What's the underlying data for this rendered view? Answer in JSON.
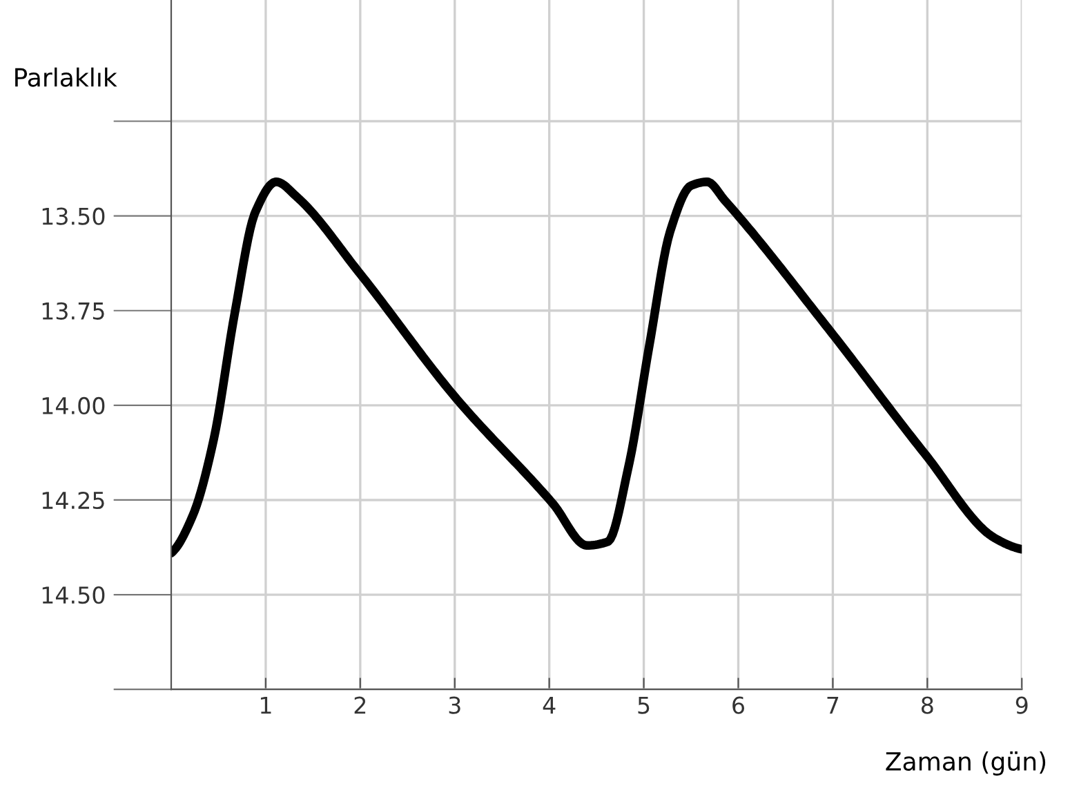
{
  "chart_data": {
    "type": "line",
    "xlabel": "Zaman (gün)",
    "ylabel": "Parlaklık",
    "xlim": [
      0,
      9
    ],
    "xticks": [
      1,
      2,
      3,
      4,
      5,
      6,
      7,
      8,
      9
    ],
    "ylim": [
      14.75,
      12.93
    ],
    "yticks": [
      {
        "value": 13.25,
        "label": null
      },
      {
        "value": 13.5,
        "label": "13.50"
      },
      {
        "value": 13.75,
        "label": "13.75"
      },
      {
        "value": 14.0,
        "label": "14.00"
      },
      {
        "value": 14.25,
        "label": "14.25"
      },
      {
        "value": 14.5,
        "label": "14.50"
      },
      {
        "value": 14.75,
        "label": null
      }
    ],
    "grid": true,
    "marker": "none",
    "line_style": "solid",
    "series": [
      {
        "color": "#000000",
        "x": [
          0,
          0.23,
          0.45,
          0.67,
          0.89,
          1.11,
          1.33,
          1.99,
          3.01,
          4.04,
          4.4,
          4.62,
          4.84,
          5.06,
          5.28,
          5.5,
          5.67,
          5.86,
          6.96,
          7.98,
          8.71,
          9.0
        ],
        "values": [
          14.39,
          14.29,
          14.09,
          13.76,
          13.49,
          13.41,
          13.45,
          13.65,
          13.98,
          14.26,
          14.37,
          14.36,
          14.16,
          13.84,
          13.54,
          13.42,
          13.41,
          13.46,
          13.8,
          14.13,
          14.35,
          14.38
        ]
      }
    ]
  }
}
